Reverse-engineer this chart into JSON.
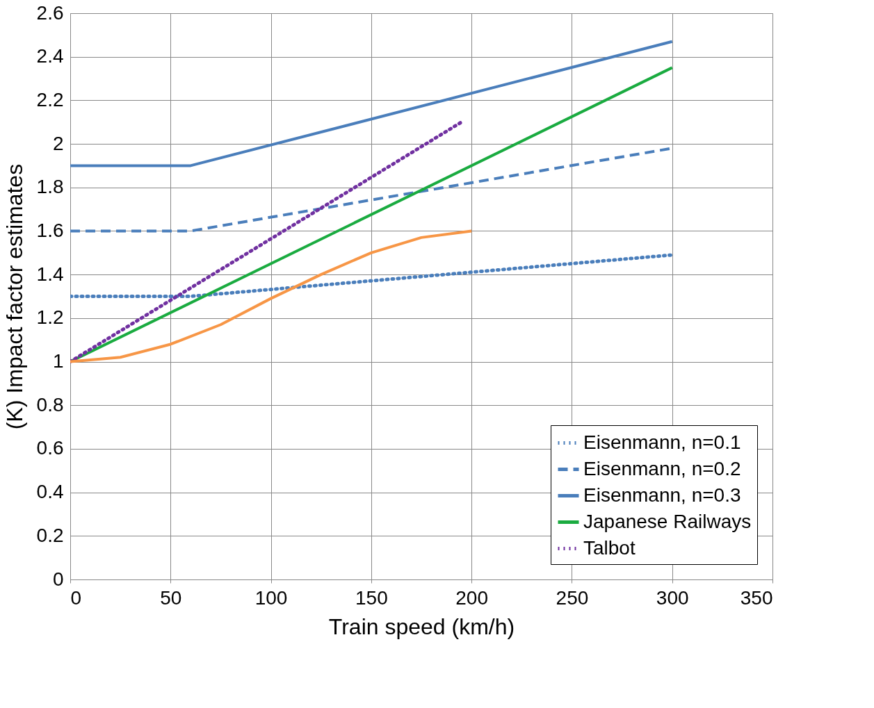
{
  "chart_data": {
    "type": "line",
    "xlabel": "Train speed (km/h)",
    "ylabel": "(K) Impact factor estimates",
    "xlim": [
      0,
      350
    ],
    "xticks": [
      0,
      50,
      100,
      150,
      200,
      250,
      300,
      350
    ],
    "ylim": [
      0,
      2.6
    ],
    "yticks": [
      0,
      0.2,
      0.4,
      0.6,
      0.8,
      1,
      1.2,
      1.4,
      1.6,
      1.8,
      2,
      2.2,
      2.4,
      2.6
    ],
    "grid": true,
    "legend": "bottom right",
    "series": [
      {
        "name": "Eisenmann, n=0.1",
        "color": "#4a7ebb",
        "line_style": "dotted",
        "x": [
          0,
          60,
          300
        ],
        "values": [
          1.3,
          1.3,
          1.49
        ]
      },
      {
        "name": "Eisenmann, n=0.2",
        "color": "#4a7ebb",
        "line_style": "dashed",
        "x": [
          0,
          60,
          300
        ],
        "values": [
          1.6,
          1.6,
          1.98
        ]
      },
      {
        "name": "Eisenmann, n=0.3",
        "color": "#4a7ebb",
        "line_style": "solid",
        "x": [
          0,
          60,
          300
        ],
        "values": [
          1.9,
          1.9,
          2.47
        ]
      },
      {
        "name": "Japanese Railways",
        "color": "#1aab40",
        "line_style": "solid",
        "x": [
          0,
          300
        ],
        "values": [
          1.0,
          2.35
        ]
      },
      {
        "name": "Talbot",
        "color": "#7030a0",
        "line_style": "dotted",
        "x": [
          0,
          195
        ],
        "values": [
          1.0,
          2.1
        ]
      },
      {
        "color": "#f79646",
        "line_style": "solid",
        "x": [
          0,
          25,
          50,
          75,
          100,
          125,
          150,
          175,
          200
        ],
        "values": [
          1.0,
          1.02,
          1.08,
          1.17,
          1.29,
          1.4,
          1.5,
          1.57,
          1.6
        ]
      }
    ]
  }
}
